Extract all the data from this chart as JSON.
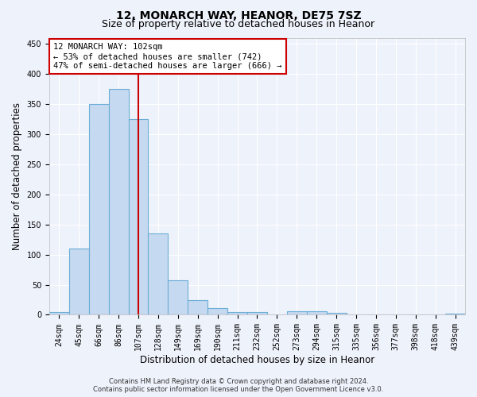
{
  "title_line1": "12, MONARCH WAY, HEANOR, DE75 7SZ",
  "title_line2": "Size of property relative to detached houses in Heanor",
  "xlabel": "Distribution of detached houses by size in Heanor",
  "ylabel": "Number of detached properties",
  "categories": [
    "24sqm",
    "45sqm",
    "66sqm",
    "86sqm",
    "107sqm",
    "128sqm",
    "149sqm",
    "169sqm",
    "190sqm",
    "211sqm",
    "232sqm",
    "252sqm",
    "273sqm",
    "294sqm",
    "315sqm",
    "335sqm",
    "356sqm",
    "377sqm",
    "398sqm",
    "418sqm",
    "439sqm"
  ],
  "values": [
    5,
    110,
    350,
    375,
    325,
    135,
    57,
    25,
    11,
    4,
    4,
    1,
    6,
    6,
    3,
    1,
    1,
    0,
    0,
    0,
    2
  ],
  "bar_color": "#c5d9f0",
  "bar_edge_color": "#6baed6",
  "vline_x_index": 4,
  "vline_color": "#cc0000",
  "annotation_text": "12 MONARCH WAY: 102sqm\n← 53% of detached houses are smaller (742)\n47% of semi-detached houses are larger (666) →",
  "annotation_box_color": "#ffffff",
  "annotation_box_edge_color": "#cc0000",
  "ylim": [
    0,
    460
  ],
  "yticks": [
    0,
    50,
    100,
    150,
    200,
    250,
    300,
    350,
    400,
    450
  ],
  "footer_line1": "Contains HM Land Registry data © Crown copyright and database right 2024.",
  "footer_line2": "Contains public sector information licensed under the Open Government Licence v3.0.",
  "background_color": "#eef2fb",
  "grid_color": "#ffffff",
  "title_fontsize": 10,
  "subtitle_fontsize": 9,
  "tick_fontsize": 7,
  "label_fontsize": 8.5,
  "annotation_fontsize": 7.5,
  "footer_fontsize": 6
}
